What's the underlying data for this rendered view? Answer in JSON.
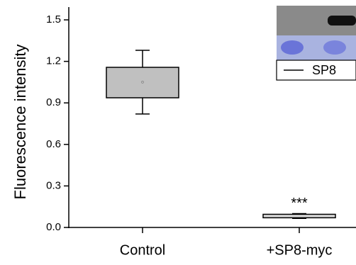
{
  "chart_data": {
    "type": "box",
    "y_label": "Fluorescence intensity",
    "categories": [
      "Control",
      "+SP8-myc"
    ],
    "boxes": [
      {
        "whislo": 0.82,
        "q1": 0.937,
        "q3": 1.157,
        "whishi": 1.28,
        "mean": 1.05,
        "color": "#c0c0c0"
      },
      {
        "whislo": 0.065,
        "q1": 0.07,
        "q3": 0.095,
        "whishi": 0.1,
        "color": "#d9d9d9"
      }
    ],
    "annotation": "***",
    "legend_label": "SP8",
    "ylim": [
      0,
      1.6
    ],
    "yticks": [
      {
        "value": 0,
        "label": "0.0"
      },
      0.3,
      0.6,
      0.9,
      1.2,
      1.5
    ]
  }
}
